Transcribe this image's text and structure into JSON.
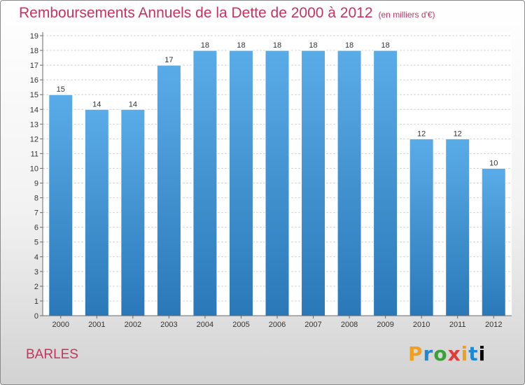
{
  "title": "Remboursements Annuels de la Dette de 2000 à 2012",
  "subtitle": "(en milliers d'€)",
  "city": "BARLES",
  "logo_text": "Proxiti",
  "colors": {
    "title": "#c8325e",
    "bar_light": "#5aace8",
    "bar_dark": "#2a78b8",
    "grid": "#d4d4d4",
    "axis": "#6a6a6a"
  },
  "chart_data": {
    "type": "bar",
    "title": "Remboursements Annuels de la Dette de 2000 à 2012",
    "subtitle": "(en milliers d'€)",
    "xlabel": "",
    "ylabel": "",
    "ylim": [
      0,
      19
    ],
    "y_ticks": [
      0,
      1,
      2,
      3,
      4,
      5,
      6,
      7,
      8,
      9,
      10,
      11,
      12,
      13,
      14,
      15,
      16,
      17,
      18,
      19
    ],
    "grid": true,
    "legend": "none",
    "categories": [
      "2000",
      "2001",
      "2002",
      "2003",
      "2004",
      "2005",
      "2006",
      "2007",
      "2008",
      "2009",
      "2010",
      "2011",
      "2012"
    ],
    "values": [
      15,
      14,
      14,
      17,
      18,
      18,
      18,
      18,
      18,
      18,
      12,
      12,
      10
    ]
  }
}
